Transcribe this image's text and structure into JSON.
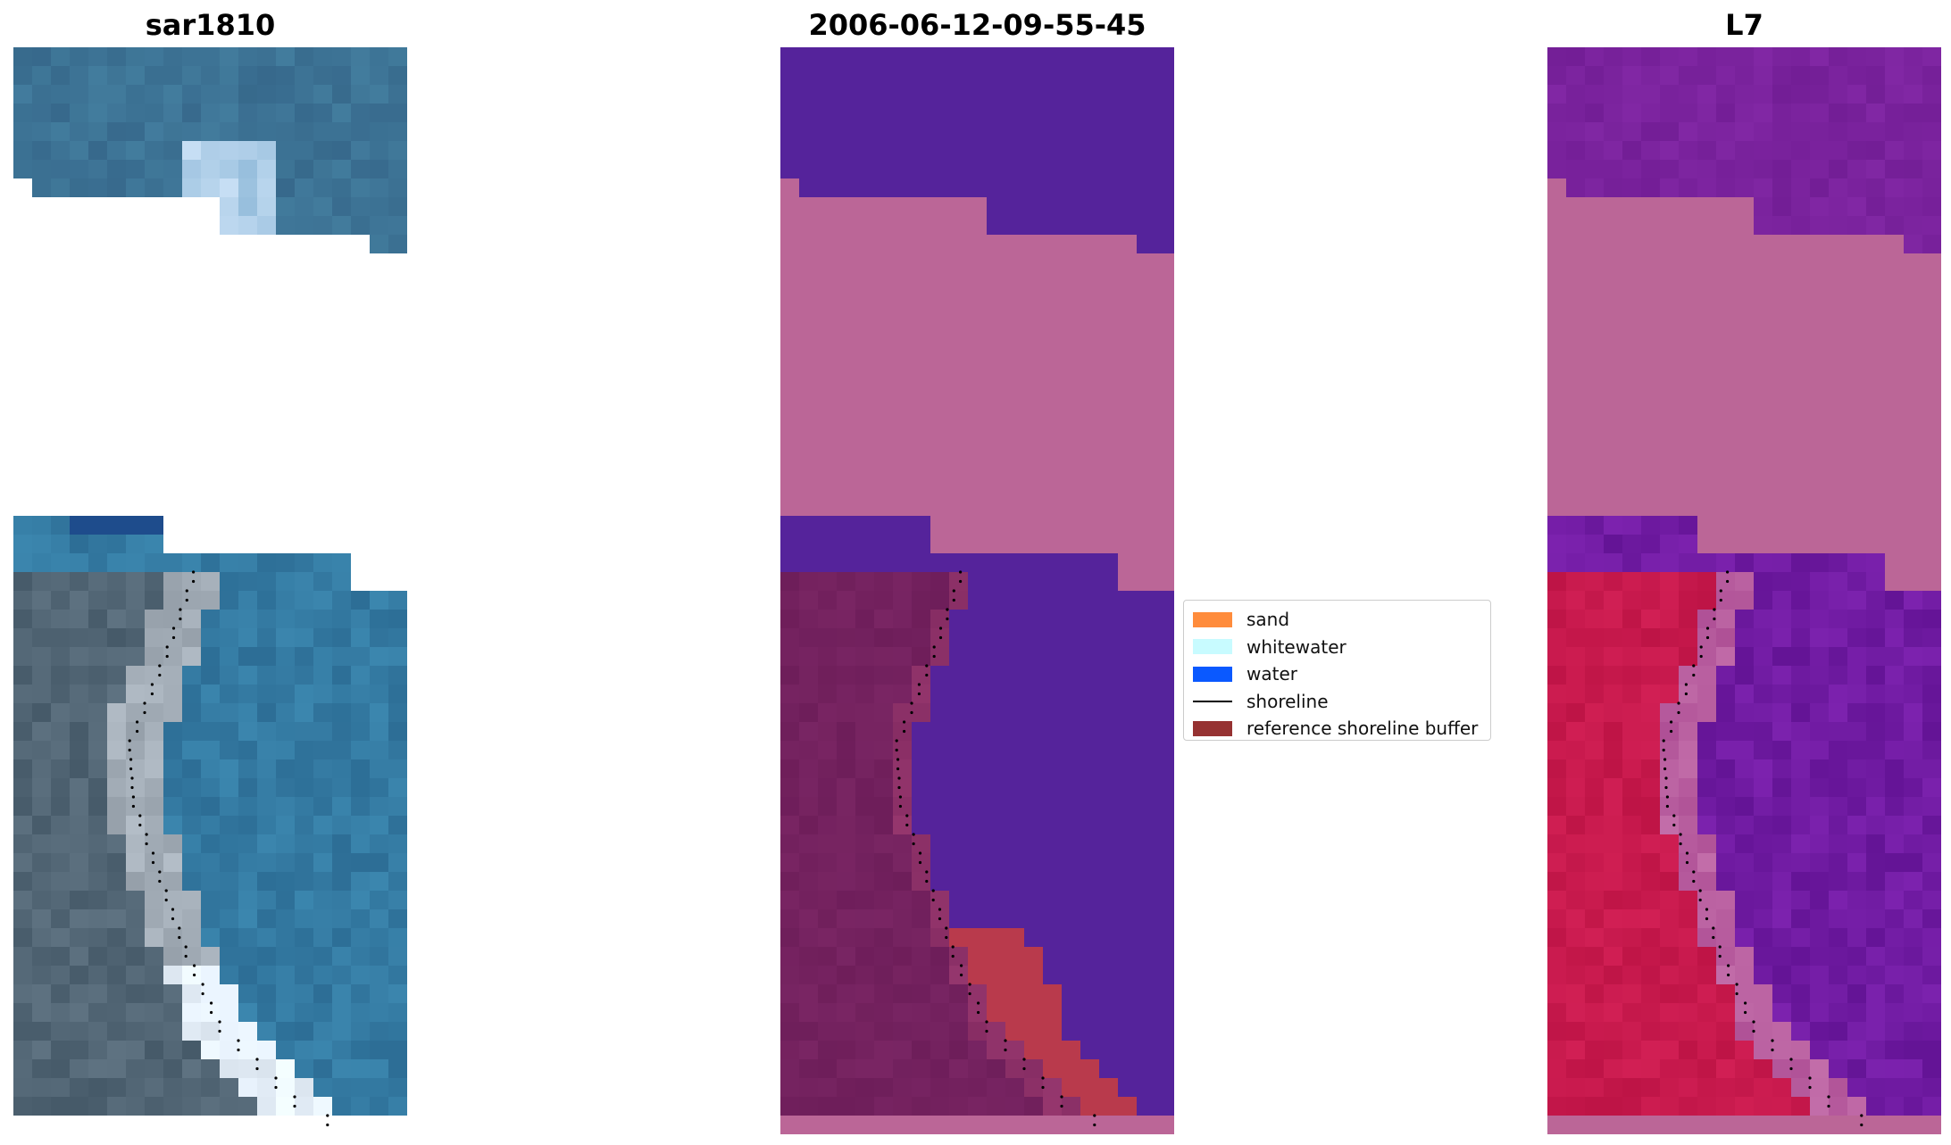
{
  "titles": {
    "left": "sar1810",
    "middle": "2006-06-12-09-55-45",
    "right": "L7"
  },
  "legend": [
    {
      "label": "sand",
      "color": "#ff8c3c",
      "kind": "patch"
    },
    {
      "label": "whitewater",
      "color": "#c8fbff",
      "kind": "patch"
    },
    {
      "label": "water",
      "color": "#0a59ff",
      "kind": "patch"
    },
    {
      "label": "shoreline",
      "color": "#000000",
      "kind": "line"
    },
    {
      "label": "reference shoreline buffer",
      "color": "#963232",
      "kind": "patch"
    }
  ],
  "panels": {
    "left": {
      "content": "rgb-satellite-image"
    },
    "middle": {
      "content": "classified-image"
    },
    "right": {
      "content": "multispectral-index-image"
    }
  }
}
